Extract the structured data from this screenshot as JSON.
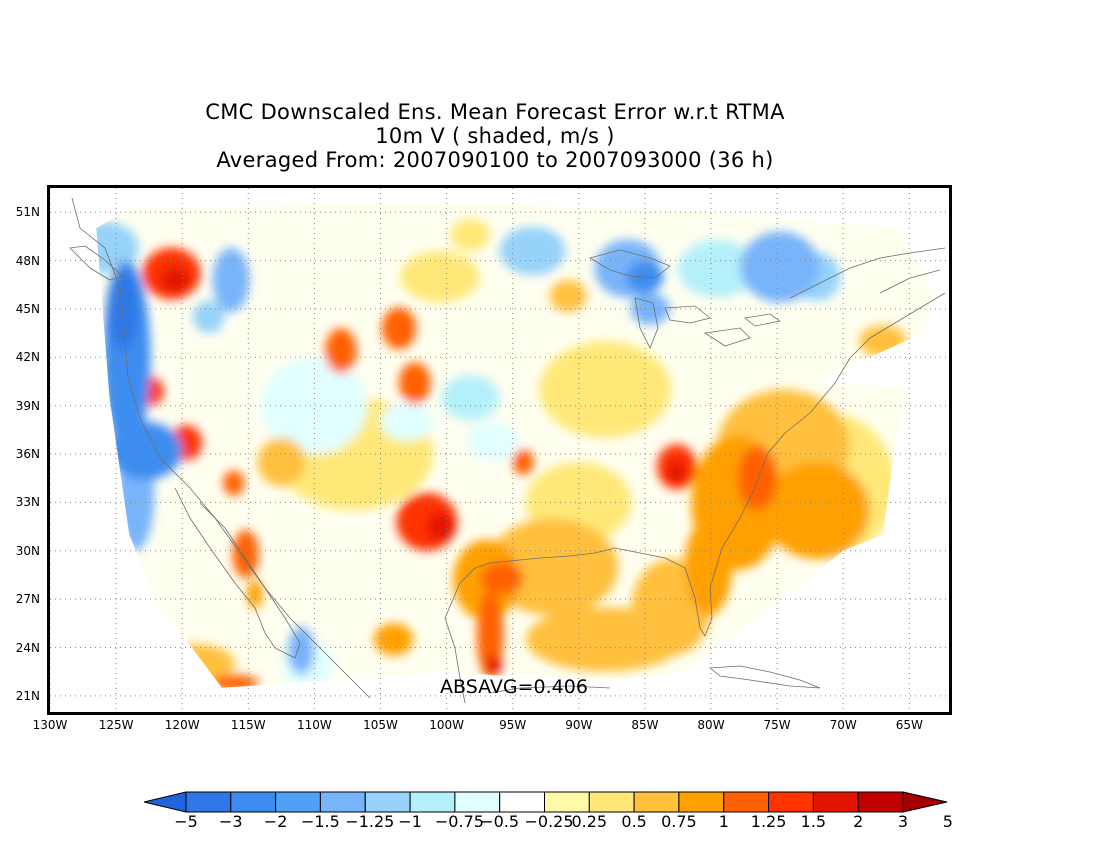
{
  "title": {
    "line1": "CMC Downscaled Ens. Mean Forecast Error w.r.t RTMA",
    "line2": "10m V ( shaded, m/s )",
    "line3": "Averaged From: 2007090100 to 2007093000 (36 h)"
  },
  "map": {
    "lat_range": [
      20,
      52.5
    ],
    "lon_range": [
      -130,
      -62
    ],
    "lat_ticks": [
      {
        "value": 51,
        "label": "51N"
      },
      {
        "value": 48,
        "label": "48N"
      },
      {
        "value": 45,
        "label": "45N"
      },
      {
        "value": 42,
        "label": "42N"
      },
      {
        "value": 39,
        "label": "39N"
      },
      {
        "value": 36,
        "label": "36N"
      },
      {
        "value": 33,
        "label": "33N"
      },
      {
        "value": 30,
        "label": "30N"
      },
      {
        "value": 27,
        "label": "27N"
      },
      {
        "value": 24,
        "label": "24N"
      },
      {
        "value": 21,
        "label": "21N"
      }
    ],
    "lon_ticks": [
      {
        "value": -130,
        "label": "130W"
      },
      {
        "value": -125,
        "label": "125W"
      },
      {
        "value": -120,
        "label": "120W"
      },
      {
        "value": -115,
        "label": "115W"
      },
      {
        "value": -110,
        "label": "110W"
      },
      {
        "value": -105,
        "label": "105W"
      },
      {
        "value": -100,
        "label": "100W"
      },
      {
        "value": -95,
        "label": "95W"
      },
      {
        "value": -90,
        "label": "90W"
      },
      {
        "value": -85,
        "label": "85W"
      },
      {
        "value": -80,
        "label": "80W"
      },
      {
        "value": -75,
        "label": "75W"
      },
      {
        "value": -70,
        "label": "70W"
      },
      {
        "value": -65,
        "label": "65W"
      }
    ],
    "absavg_label": "ABSAVG=0.406",
    "domain_polygon": [
      [
        -125.5,
        39.5
      ],
      [
        -126.5,
        50
      ],
      [
        -124,
        51.2
      ],
      [
        -110,
        51.5
      ],
      [
        -95,
        51.5
      ],
      [
        -80,
        51
      ],
      [
        -66,
        50
      ],
      [
        -63,
        46
      ],
      [
        -64,
        43.5
      ],
      [
        -68,
        42
      ],
      [
        -72,
        40.5
      ],
      [
        -65,
        40
      ],
      [
        -66,
        37
      ],
      [
        -67,
        31
      ],
      [
        -70,
        30
      ],
      [
        -73,
        28
      ],
      [
        -78,
        25
      ],
      [
        -82,
        22.5
      ],
      [
        -87,
        22
      ],
      [
        -95,
        22.2
      ],
      [
        -100,
        22.5
      ],
      [
        -108,
        22
      ],
      [
        -117,
        21.5
      ],
      [
        -122,
        27
      ],
      [
        -124,
        31
      ]
    ],
    "blobs": [
      {
        "lon": -124.2,
        "lat": 42,
        "rx": 1.8,
        "ry": 6,
        "value": -1.5
      },
      {
        "lon": -124.5,
        "lat": 45,
        "rx": 1.2,
        "ry": 2.5,
        "value": -2
      },
      {
        "lon": -122.8,
        "lat": 36.2,
        "rx": 2.8,
        "ry": 1.8,
        "value": -1.5
      },
      {
        "lon": -123.5,
        "lat": 33.5,
        "rx": 1.4,
        "ry": 3.5,
        "value": -1
      },
      {
        "lon": -125.8,
        "lat": 48.8,
        "rx": 2.5,
        "ry": 1.6,
        "value": -0.75
      },
      {
        "lon": -120.8,
        "lat": 47.2,
        "rx": 2.2,
        "ry": 1.6,
        "value": 1.25
      },
      {
        "lon": -120.5,
        "lat": 46.8,
        "rx": 1.1,
        "ry": 0.8,
        "value": 1.5
      },
      {
        "lon": -122.4,
        "lat": 39.9,
        "rx": 1,
        "ry": 0.9,
        "value": 1.25
      },
      {
        "lon": -119.7,
        "lat": 36.7,
        "rx": 1.2,
        "ry": 1.1,
        "value": 1.25
      },
      {
        "lon": -116.1,
        "lat": 34.2,
        "rx": 0.8,
        "ry": 0.8,
        "value": 1
      },
      {
        "lon": -115.2,
        "lat": 29.8,
        "rx": 1,
        "ry": 1.5,
        "value": 1
      },
      {
        "lon": -114.5,
        "lat": 27.3,
        "rx": 0.6,
        "ry": 0.9,
        "value": 0.75
      },
      {
        "lon": -116.3,
        "lat": 46.8,
        "rx": 1.4,
        "ry": 2,
        "value": -1
      },
      {
        "lon": -118,
        "lat": 44.5,
        "rx": 1.2,
        "ry": 1,
        "value": -0.75
      },
      {
        "lon": -108,
        "lat": 42.4,
        "rx": 1.2,
        "ry": 1.4,
        "value": 1
      },
      {
        "lon": -103.6,
        "lat": 43.8,
        "rx": 1.3,
        "ry": 1.3,
        "value": 1
      },
      {
        "lon": -102.4,
        "lat": 40.4,
        "rx": 1.2,
        "ry": 1.3,
        "value": 1
      },
      {
        "lon": -101.5,
        "lat": 31.8,
        "rx": 2.3,
        "ry": 1.8,
        "value": 1.25
      },
      {
        "lon": -100.4,
        "lat": 31.5,
        "rx": 1.1,
        "ry": 0.9,
        "value": 1.5
      },
      {
        "lon": -97,
        "lat": 28.2,
        "rx": 2.5,
        "ry": 2.5,
        "value": 0.75
      },
      {
        "lon": -96.7,
        "lat": 24.8,
        "rx": 1,
        "ry": 2.8,
        "value": 1
      },
      {
        "lon": -96.4,
        "lat": 22.9,
        "rx": 0.6,
        "ry": 0.6,
        "value": 1.5
      },
      {
        "lon": -95.8,
        "lat": 28.3,
        "rx": 1.6,
        "ry": 1,
        "value": 1
      },
      {
        "lon": -94.2,
        "lat": 35.5,
        "rx": 0.8,
        "ry": 0.8,
        "value": 1
      },
      {
        "lon": -82.6,
        "lat": 35.2,
        "rx": 1.5,
        "ry": 1.4,
        "value": 1.25
      },
      {
        "lon": -82.6,
        "lat": 34.9,
        "rx": 0.7,
        "ry": 0.7,
        "value": 1.5
      },
      {
        "lon": -78,
        "lat": 33,
        "rx": 3.5,
        "ry": 4.2,
        "value": 0.75
      },
      {
        "lon": -76.5,
        "lat": 34.5,
        "rx": 1.5,
        "ry": 2,
        "value": 1
      },
      {
        "lon": -80.2,
        "lat": 29,
        "rx": 1.8,
        "ry": 3,
        "value": 0.75
      },
      {
        "lon": -72,
        "lat": 32.5,
        "rx": 4,
        "ry": 3,
        "value": 0.75
      },
      {
        "lon": -74.5,
        "lat": 36.5,
        "rx": 5,
        "ry": 3.5,
        "value": 0.5
      },
      {
        "lon": -71,
        "lat": 34,
        "rx": 5,
        "ry": 4.5,
        "value": 0.25
      },
      {
        "lon": -88,
        "lat": 24.5,
        "rx": 6,
        "ry": 2,
        "value": 0.5
      },
      {
        "lon": -83,
        "lat": 26.5,
        "rx": 3,
        "ry": 3,
        "value": 0.5
      },
      {
        "lon": -92,
        "lat": 29,
        "rx": 5,
        "ry": 3,
        "value": 0.5
      },
      {
        "lon": -86.3,
        "lat": 47.5,
        "rx": 2.5,
        "ry": 1.8,
        "value": -1
      },
      {
        "lon": -85,
        "lat": 47,
        "rx": 1.4,
        "ry": 1,
        "value": -1.5
      },
      {
        "lon": -84.6,
        "lat": 45,
        "rx": 1.5,
        "ry": 1,
        "value": -1
      },
      {
        "lon": -74.8,
        "lat": 47.6,
        "rx": 3,
        "ry": 2.2,
        "value": -1
      },
      {
        "lon": -72,
        "lat": 47,
        "rx": 1.8,
        "ry": 1.5,
        "value": -0.75
      },
      {
        "lon": -79.5,
        "lat": 47.5,
        "rx": 3,
        "ry": 1.8,
        "value": -0.5
      },
      {
        "lon": -93.5,
        "lat": 48.6,
        "rx": 2.5,
        "ry": 1.5,
        "value": -0.75
      },
      {
        "lon": -98.2,
        "lat": 49.6,
        "rx": 1.5,
        "ry": 1,
        "value": 0.25
      },
      {
        "lon": -88,
        "lat": 40,
        "rx": 5,
        "ry": 3,
        "value": 0.25
      },
      {
        "lon": -90,
        "lat": 33,
        "rx": 4,
        "ry": 2.5,
        "value": 0.25
      },
      {
        "lon": -107,
        "lat": 36,
        "rx": 6,
        "ry": 3.5,
        "value": 0.25
      },
      {
        "lon": -110,
        "lat": 39,
        "rx": 4,
        "ry": 3,
        "value": -0.25
      },
      {
        "lon": -98.2,
        "lat": 39.5,
        "rx": 2.2,
        "ry": 1.4,
        "value": -0.5
      },
      {
        "lon": -96.5,
        "lat": 36.8,
        "rx": 2,
        "ry": 1.2,
        "value": -0.25
      },
      {
        "lon": -103,
        "lat": 38,
        "rx": 2,
        "ry": 1.2,
        "value": -0.25
      },
      {
        "lon": -111,
        "lat": 23.8,
        "rx": 1,
        "ry": 1.5,
        "value": -1
      },
      {
        "lon": -110.5,
        "lat": 23,
        "rx": 2,
        "ry": 1.5,
        "value": -0.25
      },
      {
        "lon": -116,
        "lat": 21.8,
        "rx": 1.8,
        "ry": 0.5,
        "value": 1
      },
      {
        "lon": -119,
        "lat": 23,
        "rx": 3,
        "ry": 1.2,
        "value": 0.5
      },
      {
        "lon": -104,
        "lat": 24.5,
        "rx": 1.5,
        "ry": 1,
        "value": 0.75
      },
      {
        "lon": -67,
        "lat": 43,
        "rx": 1.8,
        "ry": 1,
        "value": 0.5
      },
      {
        "lon": -112.5,
        "lat": 35.5,
        "rx": 1.8,
        "ry": 1.5,
        "value": 0.5
      },
      {
        "lon": -90.8,
        "lat": 45.8,
        "rx": 1.4,
        "ry": 1,
        "value": 0.5
      },
      {
        "lon": -100.5,
        "lat": 47,
        "rx": 3,
        "ry": 1.6,
        "value": 0.25
      }
    ]
  },
  "colorbar": {
    "colors": [
      "#1e64dc",
      "#2d78e6",
      "#3c8cf0",
      "#50a0f5",
      "#78b4fa",
      "#96d2fa",
      "#b4f0fa",
      "#e1ffff",
      "#ffffff",
      "#fffaaa",
      "#ffe878",
      "#ffc03c",
      "#ffa000",
      "#ff6000",
      "#ff3200",
      "#e11400",
      "#c00000",
      "#a50000"
    ],
    "labels": [
      "-5",
      "-3",
      "-2",
      "-1.5",
      "-1.25",
      "-1",
      "-0.75",
      "-0.5",
      "-0.25",
      "0.25",
      "0.5",
      "0.75",
      "1",
      "1.25",
      "1.5",
      "2",
      "3",
      "5"
    ],
    "thresholds": [
      -5,
      -3,
      -2,
      -1.5,
      -1.25,
      -1,
      -0.75,
      -0.5,
      -0.25,
      0.25,
      0.5,
      0.75,
      1,
      1.25,
      1.5,
      2,
      3,
      5
    ]
  }
}
